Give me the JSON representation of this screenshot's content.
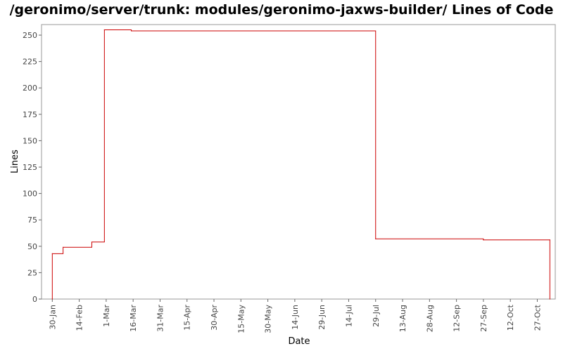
{
  "chart_data": {
    "type": "line",
    "title": "/geronimo/server/trunk: modules/geronimo-jaxws-builder/ Lines of Code",
    "xlabel": "Date",
    "ylabel": "Lines",
    "line_style": "step",
    "series_color": "#cc0000",
    "ylim": [
      0,
      260
    ],
    "xlim": [
      "2007-01-24",
      "2007-11-06"
    ],
    "yticks": [
      0,
      25,
      50,
      75,
      100,
      125,
      150,
      175,
      200,
      225,
      250
    ],
    "xticks": [
      {
        "date": "2007-01-30",
        "label": "30-Jan"
      },
      {
        "date": "2007-02-14",
        "label": "14-Feb"
      },
      {
        "date": "2007-03-01",
        "label": "1-Mar"
      },
      {
        "date": "2007-03-16",
        "label": "16-Mar"
      },
      {
        "date": "2007-03-31",
        "label": "31-Mar"
      },
      {
        "date": "2007-04-15",
        "label": "15-Apr"
      },
      {
        "date": "2007-04-30",
        "label": "30-Apr"
      },
      {
        "date": "2007-05-15",
        "label": "15-May"
      },
      {
        "date": "2007-05-30",
        "label": "30-May"
      },
      {
        "date": "2007-06-14",
        "label": "14-Jun"
      },
      {
        "date": "2007-06-29",
        "label": "29-Jun"
      },
      {
        "date": "2007-07-14",
        "label": "14-Jul"
      },
      {
        "date": "2007-07-29",
        "label": "29-Jul"
      },
      {
        "date": "2007-08-13",
        "label": "13-Aug"
      },
      {
        "date": "2007-08-28",
        "label": "28-Aug"
      },
      {
        "date": "2007-09-12",
        "label": "12-Sep"
      },
      {
        "date": "2007-09-27",
        "label": "27-Sep"
      },
      {
        "date": "2007-10-12",
        "label": "12-Oct"
      },
      {
        "date": "2007-10-27",
        "label": "27-Oct"
      }
    ],
    "points": [
      {
        "x": "2007-01-30",
        "y": 0
      },
      {
        "x": "2007-01-30",
        "y": 43
      },
      {
        "x": "2007-02-05",
        "y": 49
      },
      {
        "x": "2007-02-21",
        "y": 54
      },
      {
        "x": "2007-02-28",
        "y": 255
      },
      {
        "x": "2007-03-15",
        "y": 254
      },
      {
        "x": "2007-07-29",
        "y": 57
      },
      {
        "x": "2007-09-27",
        "y": 56
      },
      {
        "x": "2007-11-03",
        "y": 56
      },
      {
        "x": "2007-11-03",
        "y": 0
      }
    ],
    "grid": false
  }
}
